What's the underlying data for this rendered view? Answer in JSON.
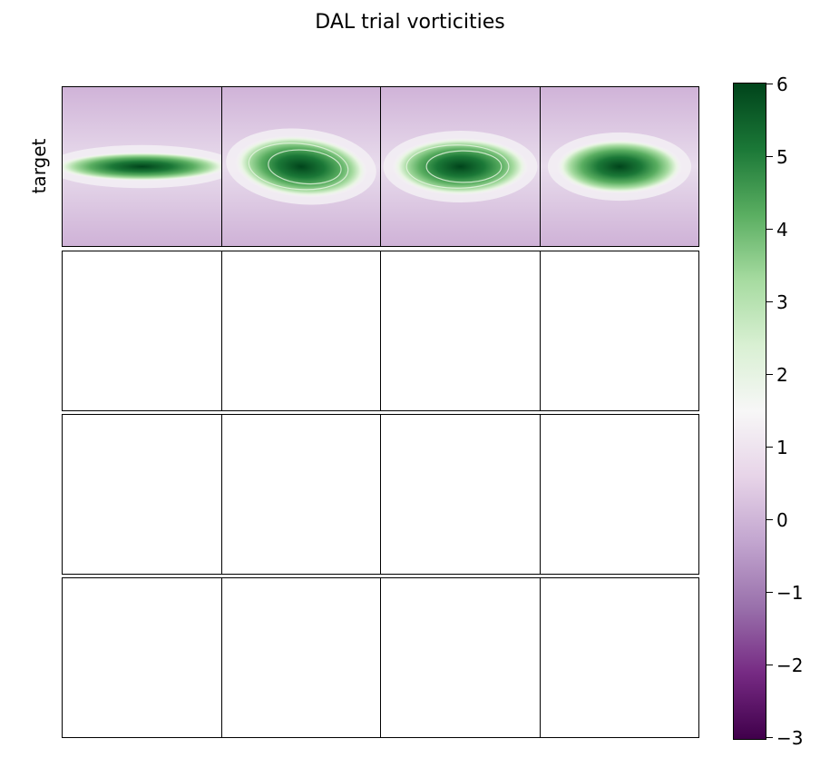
{
  "chart_data": {
    "type": "heatmap",
    "title": "DAL trial vorticities",
    "rows": [
      {
        "label": "target",
        "filled": true
      },
      {
        "label": "",
        "filled": false
      },
      {
        "label": "",
        "filled": false
      },
      {
        "label": "",
        "filled": false
      }
    ],
    "columns": 4,
    "colorbar": {
      "colormap": "PRGn",
      "vmin": -3,
      "vmax": 6,
      "ticks": [
        "6",
        "5",
        "4",
        "3",
        "2",
        "1",
        "0",
        "−1",
        "−2",
        "−3"
      ],
      "tick_values": [
        6,
        5,
        4,
        3,
        2,
        1,
        0,
        -1,
        -2,
        -3
      ]
    },
    "background_value": 0,
    "colors": {
      "low": "#40004b",
      "mid": "#f7f7f7",
      "high": "#00441b",
      "background": "#d1b5d9"
    }
  }
}
